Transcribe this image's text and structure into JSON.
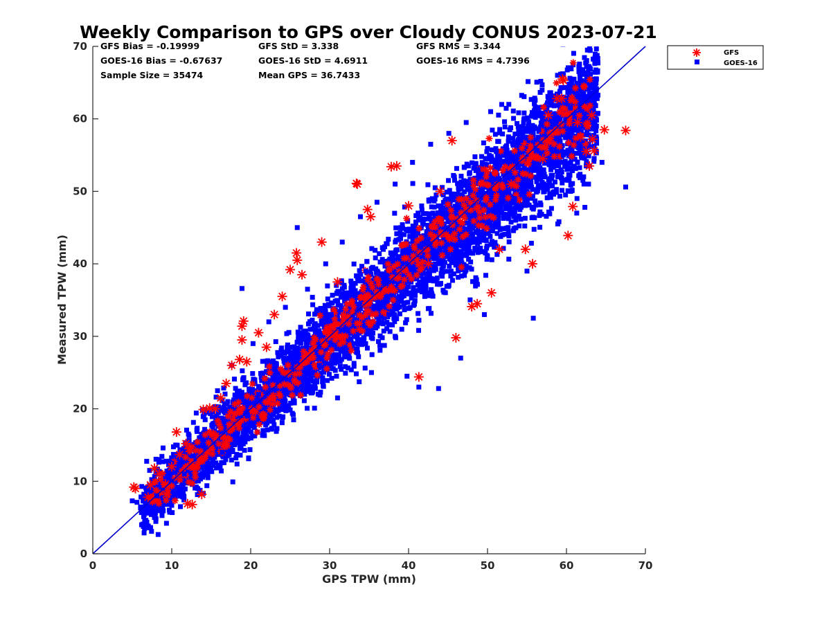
{
  "chart_data": {
    "type": "scatter",
    "title": "Weekly Comparison to GPS over Cloudy CONUS 2023-07-21",
    "xlabel": "GPS TPW (mm)",
    "ylabel": "Measured TPW (mm)",
    "xlim": [
      0,
      70
    ],
    "ylim": [
      0,
      70
    ],
    "xticks": [
      "0",
      "10",
      "20",
      "30",
      "40",
      "50",
      "60",
      "70"
    ],
    "yticks": [
      "0",
      "10",
      "20",
      "30",
      "40",
      "50",
      "60",
      "70"
    ],
    "grid": false,
    "legend_position": "outside-top-right",
    "reference_line": {
      "name": "1:1",
      "x": [
        0,
        70
      ],
      "y": [
        0,
        70
      ],
      "color": "#0000cc"
    },
    "stats": [
      [
        "GFS Bias = -0.19999",
        "GFS StD = 3.338",
        "GFS RMS = 3.344"
      ],
      [
        "GOES-16 Bias = -0.67637",
        "GOES-16 StD = 4.6911",
        "GOES-16 RMS = 4.7396"
      ],
      [
        "Sample Size = 35474",
        "Mean GPS = 36.7433",
        ""
      ]
    ],
    "series": [
      {
        "name": "GOES-16",
        "marker": "square",
        "color": "#0000ff",
        "points": [
          [
            5.0,
            7.3
          ],
          [
            5.6,
            7.1
          ],
          [
            6.4,
            6.2
          ],
          [
            7.0,
            9.0
          ],
          [
            7.2,
            11.5
          ],
          [
            7.8,
            5.3
          ],
          [
            8.1,
            8.0
          ],
          [
            8.4,
            13.0
          ],
          [
            8.9,
            14.6
          ],
          [
            9.5,
            10.2
          ],
          [
            10.0,
            12.5
          ],
          [
            10.5,
            15.0
          ],
          [
            11.1,
            6.5
          ],
          [
            11.6,
            11.0
          ],
          [
            12.2,
            16.3
          ],
          [
            12.7,
            13.5
          ],
          [
            13.3,
            9.0
          ],
          [
            13.9,
            19.8
          ],
          [
            14.5,
            12.0
          ],
          [
            15.2,
            17.5
          ],
          [
            15.8,
            22.5
          ],
          [
            16.4,
            14.0
          ],
          [
            17.1,
            21.0
          ],
          [
            17.6,
            26.0
          ],
          [
            18.2,
            16.5
          ],
          [
            18.9,
            36.6
          ],
          [
            19.0,
            24.0
          ],
          [
            19.6,
            19.0
          ],
          [
            20.3,
            29.0
          ],
          [
            21.0,
            22.0
          ],
          [
            21.7,
            17.0
          ],
          [
            22.3,
            32.0
          ],
          [
            23.0,
            25.5
          ],
          [
            23.8,
            20.0
          ],
          [
            24.4,
            34.0
          ],
          [
            25.1,
            28.5
          ],
          [
            25.9,
            45.0
          ],
          [
            26.5,
            23.0
          ],
          [
            27.2,
            36.5
          ],
          [
            28.0,
            31.0
          ],
          [
            28.7,
            26.0
          ],
          [
            29.5,
            40.0
          ],
          [
            30.2,
            33.0
          ],
          [
            31.0,
            21.5
          ],
          [
            31.6,
            43.0
          ],
          [
            32.3,
            36.0
          ],
          [
            33.1,
            29.0
          ],
          [
            33.9,
            46.5
          ],
          [
            34.6,
            39.0
          ],
          [
            35.3,
            25.0
          ],
          [
            36.0,
            48.5
          ],
          [
            36.8,
            42.0
          ],
          [
            37.5,
            33.0
          ],
          [
            38.3,
            51.0
          ],
          [
            39.0,
            45.0
          ],
          [
            39.8,
            24.5
          ],
          [
            40.5,
            54.0
          ],
          [
            41.2,
            47.0
          ],
          [
            41.3,
            23.0
          ],
          [
            42.0,
            37.0
          ],
          [
            42.8,
            56.5
          ],
          [
            43.5,
            49.5
          ],
          [
            43.8,
            22.8
          ],
          [
            44.3,
            40.0
          ],
          [
            45.1,
            58.0
          ],
          [
            45.8,
            52.0
          ],
          [
            46.6,
            27.0
          ],
          [
            47.3,
            59.5
          ],
          [
            48.1,
            45.0
          ],
          [
            48.8,
            53.0
          ],
          [
            49.6,
            33.0
          ],
          [
            50.4,
            61.0
          ],
          [
            51.1,
            55.5
          ],
          [
            51.9,
            44.0
          ],
          [
            52.7,
            62.0
          ],
          [
            53.4,
            49.0
          ],
          [
            54.2,
            57.0
          ],
          [
            55.0,
            39.0
          ],
          [
            55.8,
            32.5
          ],
          [
            56.5,
            58.5
          ],
          [
            57.3,
            52.0
          ],
          [
            58.1,
            63.0
          ],
          [
            58.9,
            45.5
          ],
          [
            59.6,
            55.0
          ],
          [
            60.5,
            61.5
          ],
          [
            61.3,
            47.0
          ],
          [
            62.0,
            57.0
          ],
          [
            62.8,
            51.0
          ],
          [
            63.8,
            59.0
          ],
          [
            64.5,
            54.0
          ],
          [
            67.5,
            50.6
          ]
        ]
      },
      {
        "name": "GFS",
        "marker": "asterisk",
        "color": "#ff0000",
        "points": [
          [
            5.2,
            9.2
          ],
          [
            5.4,
            9.0
          ],
          [
            7.0,
            7.8
          ],
          [
            7.3,
            9.5
          ],
          [
            7.8,
            11.8
          ],
          [
            8.4,
            11.0
          ],
          [
            9.3,
            8.2
          ],
          [
            9.2,
            9.6
          ],
          [
            10.0,
            12.0
          ],
          [
            10.6,
            16.8
          ],
          [
            11.0,
            13.7
          ],
          [
            11.8,
            15.2
          ],
          [
            12.2,
            14.5
          ],
          [
            12.0,
            6.9
          ],
          [
            12.6,
            6.8
          ],
          [
            13.8,
            8.2
          ],
          [
            14.0,
            19.9
          ],
          [
            14.8,
            20.1
          ],
          [
            15.5,
            20.0
          ],
          [
            16.2,
            21.5
          ],
          [
            16.9,
            23.5
          ],
          [
            17.6,
            26.0
          ],
          [
            18.6,
            26.8
          ],
          [
            18.9,
            29.5
          ],
          [
            19.1,
            32.1
          ],
          [
            18.9,
            31.4
          ],
          [
            19.5,
            26.5
          ],
          [
            21.0,
            30.5
          ],
          [
            22.0,
            28.5
          ],
          [
            23.0,
            33.0
          ],
          [
            24.0,
            35.5
          ],
          [
            25.0,
            39.2
          ],
          [
            25.8,
            41.5
          ],
          [
            25.9,
            40.5
          ],
          [
            26.5,
            38.5
          ],
          [
            29.0,
            43.0
          ],
          [
            31.0,
            37.5
          ],
          [
            33.4,
            51.1
          ],
          [
            33.5,
            51.0
          ],
          [
            34.8,
            47.5
          ],
          [
            35.2,
            46.5
          ],
          [
            37.8,
            53.4
          ],
          [
            38.5,
            53.5
          ],
          [
            40.0,
            48.0
          ],
          [
            41.3,
            24.4
          ],
          [
            42.5,
            40.0
          ],
          [
            44.0,
            50.0
          ],
          [
            45.5,
            57.0
          ],
          [
            46.0,
            29.8
          ],
          [
            48.0,
            34.1
          ],
          [
            48.7,
            34.5
          ],
          [
            50.5,
            36.0
          ],
          [
            51.5,
            42.0
          ],
          [
            53.0,
            51.0
          ],
          [
            54.8,
            42.0
          ],
          [
            55.7,
            40.0
          ],
          [
            57.0,
            54.5
          ],
          [
            57.7,
            60.5
          ],
          [
            58.8,
            62.8
          ],
          [
            59.5,
            65.5
          ],
          [
            59.6,
            65.3
          ],
          [
            59.4,
            62.8
          ],
          [
            60.2,
            43.9
          ],
          [
            60.8,
            47.9
          ],
          [
            61.4,
            59.5
          ],
          [
            61.8,
            57.5
          ],
          [
            62.5,
            55.5
          ],
          [
            62.9,
            53.5
          ],
          [
            63.2,
            60.5
          ],
          [
            63.3,
            57.2
          ],
          [
            63.5,
            55.6
          ],
          [
            64.8,
            58.5
          ],
          [
            67.5,
            58.4
          ]
        ]
      }
    ]
  }
}
